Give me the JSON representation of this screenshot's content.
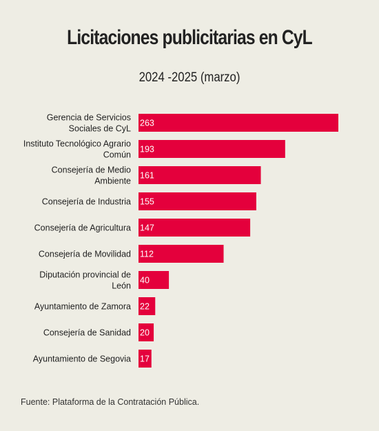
{
  "chart_data": {
    "type": "bar",
    "orientation": "horizontal",
    "title": "Licitaciones publicitarias en CyL",
    "subtitle": "2024 -2025 (marzo)",
    "categories": [
      [
        "Gerencia de Servicios",
        "Sociales de CyL"
      ],
      [
        "Instituto Tecnológico Agrario",
        "Común"
      ],
      [
        "Consejería de Medio",
        "Ambiente"
      ],
      [
        "Consejería de Industria"
      ],
      [
        "Consejería de Agricultura"
      ],
      [
        "Consejería de Movilidad"
      ],
      [
        "Diputación provincial de",
        "León"
      ],
      [
        "Ayuntamiento de Zamora"
      ],
      [
        "Consejería de Sanidad"
      ],
      [
        "Ayuntamiento de Segovia"
      ]
    ],
    "values": [
      263,
      193,
      161,
      155,
      147,
      112,
      40,
      22,
      20,
      17
    ],
    "xlim": [
      0,
      263
    ],
    "bar_color": "#e4003c",
    "data_label_color": "#ffffff",
    "grid": false,
    "source": "Fuente: Plataforma de la Contratación Pública."
  }
}
